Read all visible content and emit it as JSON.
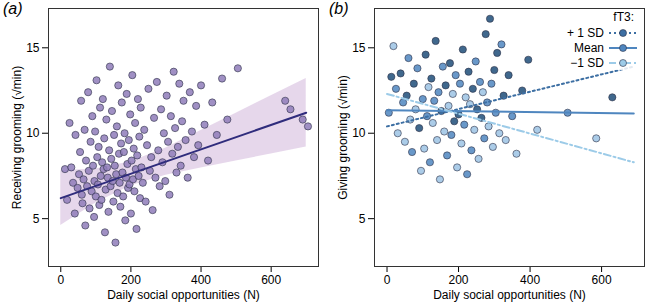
{
  "chart_data": [
    {
      "type": "scatter",
      "title": "(a)",
      "x_label": "Daily social opportunities (N)",
      "y_label": "Receiving grooming (√min)",
      "xlim": [
        -35,
        735
      ],
      "ylim": [
        2.2,
        17.3
      ],
      "xticks": [
        0,
        200,
        400,
        600
      ],
      "yticks": [
        5,
        10,
        15
      ],
      "series": [
        {
          "type": "band",
          "color": "#dcc6e3",
          "x": [
            0,
            100,
            200,
            300,
            400,
            500,
            600,
            700
          ],
          "lower": [
            4.6,
            5.91,
            6.93,
            7.54,
            7.96,
            8.37,
            8.79,
            9.2
          ],
          "upper": [
            7.8,
            7.91,
            8.33,
            9.14,
            10.16,
            11.17,
            12.19,
            13.2
          ]
        },
        {
          "type": "scatter",
          "color": "#8f7dba",
          "marker": "circle",
          "x": [
            12,
            18,
            25,
            30,
            35,
            40,
            42,
            48,
            52,
            55,
            58,
            60,
            62,
            65,
            68,
            70,
            72,
            75,
            78,
            80,
            82,
            85,
            88,
            90,
            92,
            95,
            96,
            98,
            100,
            102,
            104,
            106,
            108,
            110,
            112,
            114,
            116,
            118,
            120,
            122,
            124,
            126,
            128,
            130,
            132,
            134,
            136,
            138,
            140,
            142,
            144,
            146,
            148,
            150,
            152,
            154,
            156,
            158,
            160,
            162,
            164,
            166,
            168,
            170,
            172,
            174,
            176,
            178,
            180,
            182,
            184,
            186,
            188,
            190,
            192,
            194,
            196,
            198,
            200,
            202,
            204,
            206,
            208,
            210,
            212,
            214,
            216,
            218,
            220,
            222,
            224,
            226,
            228,
            230,
            234,
            238,
            242,
            246,
            250,
            254,
            258,
            262,
            266,
            270,
            274,
            278,
            282,
            286,
            290,
            294,
            298,
            302,
            306,
            310,
            314,
            318,
            322,
            326,
            330,
            334,
            338,
            342,
            346,
            350,
            356,
            362,
            368,
            374,
            380,
            386,
            392,
            400,
            410,
            420,
            432,
            445,
            460,
            475,
            505,
            640,
            655,
            690,
            705
          ],
          "values": [
            7.9,
            6.1,
            10.6,
            8.0,
            7.1,
            5.3,
            9.9,
            6.8,
            7.6,
            8.9,
            11.9,
            6.4,
            5.9,
            7.3,
            10.2,
            4.6,
            8.4,
            6.9,
            12.4,
            7.8,
            5.6,
            9.5,
            6.6,
            11.0,
            8.1,
            5.1,
            7.2,
            10.1,
            6.3,
            13.1,
            8.6,
            7.0,
            9.2,
            5.8,
            11.5,
            7.5,
            6.1,
            8.3,
            12.0,
            7.9,
            9.7,
            4.2,
            6.7,
            10.8,
            8.0,
            7.4,
            5.4,
            9.0,
            13.9,
            6.9,
            8.5,
            11.3,
            7.2,
            6.0,
            9.9,
            8.1,
            3.6,
            7.6,
            10.4,
            6.5,
            12.8,
            8.8,
            7.1,
            5.7,
            9.4,
            11.8,
            7.7,
            6.3,
            8.9,
            10.0,
            4.9,
            7.4,
            12.3,
            8.2,
            6.8,
            9.6,
            7.0,
            11.1,
            5.3,
            8.4,
            13.4,
            7.3,
            9.1,
            6.6,
            10.6,
            7.9,
            4.4,
            8.7,
            12.0,
            7.5,
            9.8,
            6.2,
            11.5,
            8.0,
            7.1,
            10.2,
            6.0,
            9.3,
            12.6,
            7.8,
            8.6,
            5.5,
            10.9,
            7.4,
            13.0,
            9.0,
            6.9,
            11.4,
            8.3,
            10.0,
            7.2,
            12.2,
            9.5,
            6.4,
            11.0,
            8.8,
            13.6,
            10.3,
            7.7,
            9.2,
            12.9,
            8.1,
            10.7,
            11.9,
            9.6,
            7.4,
            12.4,
            10.1,
            8.6,
            11.6,
            9.3,
            12.8,
            10.5,
            8.4,
            11.8,
            9.9,
            13.2,
            10.8,
            13.8,
            11.9,
            11.4,
            10.8,
            10.4
          ]
        },
        {
          "type": "line",
          "color": "#2f2c7c",
          "line_style": "solid",
          "x": [
            0,
            700
          ],
          "values": [
            6.2,
            11.2
          ]
        }
      ]
    },
    {
      "type": "scatter",
      "title": "(b)",
      "x_label": "Daily social opportunities (N)",
      "y_label": "Giving grooming (√min)",
      "xlim": [
        -35,
        720
      ],
      "ylim": [
        2.2,
        17.3
      ],
      "xticks": [
        0,
        200,
        400,
        600
      ],
      "yticks": [
        5,
        10,
        15
      ],
      "legend": "top-right",
      "legend_title": "fT3:",
      "series": [
        {
          "type": "scatter",
          "marker": "circle",
          "x": [
            5,
            12,
            18,
            25,
            30,
            38,
            45,
            50,
            55,
            60,
            65,
            70,
            75,
            80,
            85,
            90,
            95,
            100,
            104,
            108,
            112,
            116,
            120,
            124,
            128,
            132,
            136,
            140,
            144,
            148,
            152,
            156,
            160,
            164,
            168,
            172,
            176,
            180,
            184,
            188,
            192,
            196,
            200,
            204,
            208,
            212,
            216,
            220,
            224,
            228,
            232,
            236,
            240,
            244,
            248,
            252,
            256,
            260,
            264,
            268,
            272,
            276,
            280,
            284,
            288,
            292,
            296,
            300,
            304,
            308,
            314,
            320,
            326,
            332,
            340,
            350,
            362,
            378,
            395,
            420,
            505,
            585,
            630
          ],
          "values": [
            11.2,
            13.3,
            15.1,
            12.6,
            10.0,
            13.5,
            11.8,
            9.5,
            12.2,
            14.4,
            10.8,
            8.9,
            12.9,
            11.4,
            13.8,
            10.3,
            7.8,
            12.0,
            9.1,
            14.6,
            11.0,
            12.7,
            8.3,
            13.2,
            10.6,
            11.9,
            15.4,
            9.6,
            12.4,
            7.3,
            11.3,
            13.9,
            10.1,
            12.8,
            8.7,
            11.6,
            14.1,
            9.9,
            12.3,
            10.7,
            13.4,
            8.0,
            11.1,
            12.9,
            9.4,
            14.9,
            10.5,
            12.1,
            7.6,
            13.6,
            11.7,
            9.0,
            12.6,
            10.2,
            14.2,
            11.4,
            8.5,
            13.0,
            10.9,
            12.4,
            9.7,
            15.8,
            11.8,
            10.4,
            16.7,
            12.9,
            9.2,
            13.7,
            11.2,
            14.7,
            10.0,
            15.2,
            12.2,
            9.6,
            13.4,
            11.0,
            8.8,
            12.5,
            14.3,
            10.2,
            11.2,
            9.7,
            12.1
          ],
          "colors": [
            "#4f86bf",
            "#1f4e79",
            "#9cc3e4",
            "#4f86bf",
            "#9cc3e4",
            "#1f4e79",
            "#4f86bf",
            "#9cc3e4",
            "#1f4e79",
            "#4f86bf",
            "#9cc3e4",
            "#4f86bf",
            "#1f4e79",
            "#9cc3e4",
            "#4f86bf",
            "#1f4e79",
            "#9cc3e4",
            "#4f86bf",
            "#9cc3e4",
            "#1f4e79",
            "#4f86bf",
            "#9cc3e4",
            "#4f86bf",
            "#1f4e79",
            "#9cc3e4",
            "#4f86bf",
            "#1f4e79",
            "#9cc3e4",
            "#4f86bf",
            "#9cc3e4",
            "#1f4e79",
            "#4f86bf",
            "#9cc3e4",
            "#1f4e79",
            "#4f86bf",
            "#9cc3e4",
            "#1f4e79",
            "#4f86bf",
            "#9cc3e4",
            "#1f4e79",
            "#4f86bf",
            "#9cc3e4",
            "#1f4e79",
            "#4f86bf",
            "#9cc3e4",
            "#1f4e79",
            "#4f86bf",
            "#9cc3e4",
            "#4f86bf",
            "#1f4e79",
            "#9cc3e4",
            "#4f86bf",
            "#1f4e79",
            "#9cc3e4",
            "#4f86bf",
            "#1f4e79",
            "#9cc3e4",
            "#4f86bf",
            "#1f4e79",
            "#9cc3e4",
            "#4f86bf",
            "#1f4e79",
            "#4f86bf",
            "#9cc3e4",
            "#1f4e79",
            "#4f86bf",
            "#9cc3e4",
            "#1f4e79",
            "#4f86bf",
            "#1f4e79",
            "#9cc3e4",
            "#4f86bf",
            "#1f4e79",
            "#9cc3e4",
            "#1f4e79",
            "#4f86bf",
            "#9cc3e4",
            "#1f4e79",
            "#1f4e79",
            "#9cc3e4",
            "#4f86bf",
            "#9cc3e4",
            "#1f4e79"
          ]
        },
        {
          "type": "line",
          "name": "+ 1 SD",
          "color": "#3d6fa3",
          "line_style": "dotted",
          "marker": "circle",
          "x": [
            0,
            690
          ],
          "values": [
            10.4,
            13.9
          ]
        },
        {
          "type": "line",
          "name": "Mean",
          "color": "#4f86bf",
          "line_style": "solid",
          "marker": "circle",
          "x": [
            0,
            690
          ],
          "values": [
            11.35,
            11.15
          ]
        },
        {
          "type": "line",
          "name": "−1 SD",
          "color": "#9ccbe8",
          "line_style": "dashdot",
          "marker": "circle",
          "x": [
            0,
            690
          ],
          "values": [
            12.3,
            8.3
          ]
        }
      ]
    }
  ]
}
